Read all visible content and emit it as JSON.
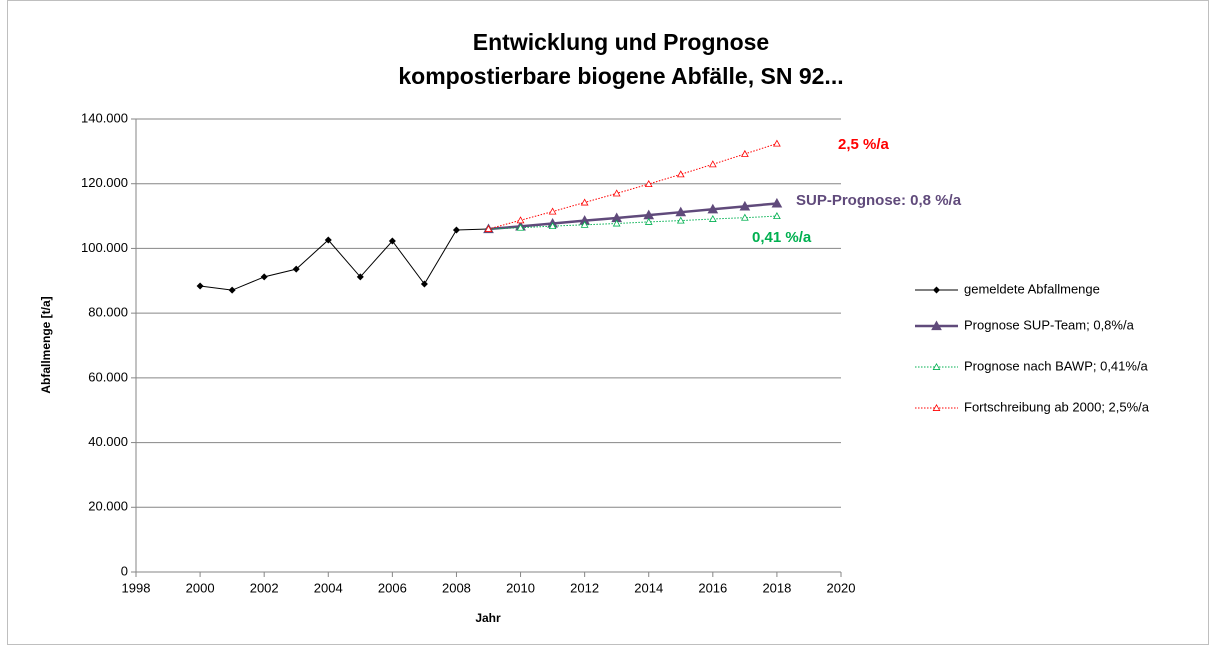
{
  "chart_data": {
    "type": "line",
    "title": [
      "Entwicklung und Prognose",
      "kompostierbare biogene Abfälle, SN 92..."
    ],
    "x_label": "Jahr",
    "y_label": "Abfallmenge [t/a]",
    "x": [
      2000,
      2001,
      2002,
      2003,
      2004,
      2005,
      2006,
      2007,
      2008,
      2009,
      2010,
      2011,
      2012,
      2013,
      2014,
      2015,
      2016,
      2017,
      2018
    ],
    "series": [
      {
        "name": "gemeldete Abfallmenge",
        "color": "#000000",
        "marker": "diamond",
        "line_style": "solid",
        "values": [
          88400,
          87100,
          91200,
          93600,
          102600,
          91200,
          102300,
          89000,
          105700,
          106000,
          null,
          null,
          null,
          null,
          null,
          null,
          null,
          null,
          null
        ]
      },
      {
        "name": "Prognose SUP-Team;  0,8%/a",
        "color": "#604a7b",
        "marker": "triangle",
        "line_style": "solid",
        "values": [
          null,
          null,
          null,
          null,
          null,
          null,
          null,
          null,
          null,
          106000,
          106800,
          107700,
          108600,
          109400,
          110300,
          111200,
          112100,
          113000,
          113900
        ]
      },
      {
        "name": "Prognose nach BAWP; 0,41%/a",
        "color": "#00b050",
        "marker": "triangle-open",
        "line_style": "dotted",
        "values": [
          null,
          null,
          null,
          null,
          null,
          null,
          null,
          null,
          null,
          106000,
          106400,
          106900,
          107300,
          107700,
          108200,
          108600,
          109100,
          109500,
          110000
        ]
      },
      {
        "name": "Fortschreibung ab 2000; 2,5%/a",
        "color": "#ff0000",
        "marker": "triangle-open",
        "line_style": "dotted",
        "values": [
          null,
          null,
          null,
          null,
          null,
          null,
          null,
          null,
          null,
          106000,
          108700,
          111400,
          114200,
          117000,
          119900,
          122900,
          126000,
          129200,
          132400
        ]
      }
    ],
    "annotations": [
      {
        "text": "2,5 %/a",
        "color": "#ff0000"
      },
      {
        "text": "SUP-Prognose: 0,8 %/a",
        "color": "#604a7b"
      },
      {
        "text": "0,41 %/a",
        "color": "#00b050"
      }
    ],
    "xlim": [
      1998,
      2020
    ],
    "xticks": [
      1998,
      2000,
      2002,
      2004,
      2006,
      2008,
      2010,
      2012,
      2014,
      2016,
      2018,
      2020
    ],
    "ylim": [
      0,
      140000
    ],
    "yticks": [
      0,
      {
        "value": 20000,
        "label": "20.000"
      },
      {
        "value": 40000,
        "label": "40.000"
      },
      {
        "value": 60000,
        "label": "60.000"
      },
      {
        "value": 80000,
        "label": "80.000"
      },
      {
        "value": 100000,
        "label": "100.000"
      },
      {
        "value": 120000,
        "label": "120.000"
      },
      {
        "value": 140000,
        "label": "140.000"
      }
    ],
    "grid": true,
    "legend": "right"
  }
}
